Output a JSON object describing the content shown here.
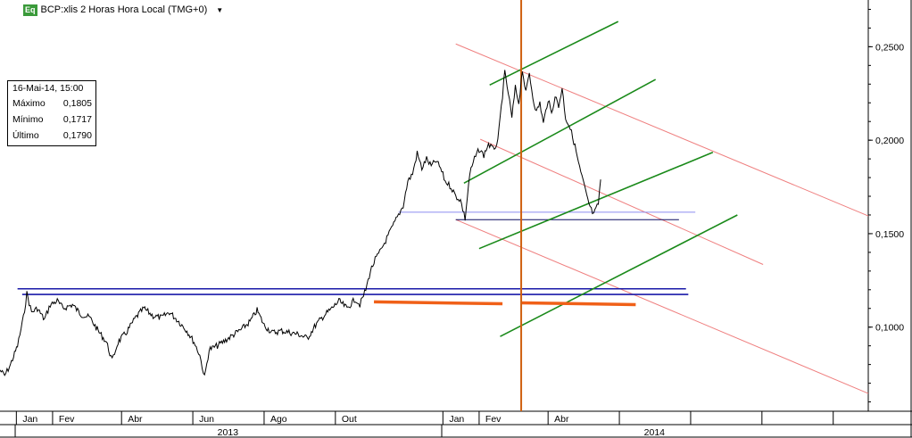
{
  "header": {
    "badge": "Eq",
    "title": "BCP:xlis 2 Horas Hora Local (TMG+0)",
    "menu_icon": "dropdown-caret-icon"
  },
  "info_box": {
    "datetime": "16-Mai-14, 15:00",
    "rows": [
      {
        "label": "Máximo",
        "value": "0,1805"
      },
      {
        "label": "Mínimo",
        "value": "0,1717"
      },
      {
        "label": "Último",
        "value": "0,1790"
      }
    ]
  },
  "chart_data": {
    "type": "line",
    "title": "",
    "xlabel": "",
    "ylabel": "",
    "ylim": [
      0.055,
      0.275
    ],
    "xlim": [
      "2012-12-18",
      "2014-12-31"
    ],
    "y_ticks": [
      {
        "label": "0,2500",
        "value": 0.25
      },
      {
        "label": "0,2000",
        "value": 0.2
      },
      {
        "label": "0,1500",
        "value": 0.15
      },
      {
        "label": "0,1000",
        "value": 0.1
      }
    ],
    "x_month_ticks": [
      {
        "label": "Jan",
        "date": "2013-01-01"
      },
      {
        "label": "Fev",
        "date": "2013-02-01"
      },
      {
        "label": "Abr",
        "date": "2013-04-01"
      },
      {
        "label": "Jun",
        "date": "2013-06-01"
      },
      {
        "label": "Ago",
        "date": "2013-08-01"
      },
      {
        "label": "Out",
        "date": "2013-10-01"
      },
      {
        "label": "Jan",
        "date": "2014-01-01"
      },
      {
        "label": "Fev",
        "date": "2014-02-01"
      },
      {
        "label": "Abr",
        "date": "2014-04-01"
      }
    ],
    "x_unlabeled_ticks": [
      "2014-06-01",
      "2014-08-01",
      "2014-10-01",
      "2014-12-01"
    ],
    "x_year_ticks": [
      {
        "label": "2013",
        "date": "2013-07-01"
      },
      {
        "label": "2014",
        "date": "2014-07-01"
      }
    ],
    "grid": false,
    "series": [
      {
        "color": "#000000",
        "points": [
          [
            "2012-12-18",
            0.077
          ],
          [
            "2012-12-22",
            0.074
          ],
          [
            "2012-12-27",
            0.08
          ],
          [
            "2013-01-02",
            0.09
          ],
          [
            "2013-01-07",
            0.105
          ],
          [
            "2013-01-10",
            0.118
          ],
          [
            "2013-01-14",
            0.108
          ],
          [
            "2013-01-19",
            0.11
          ],
          [
            "2013-01-25",
            0.104
          ],
          [
            "2013-01-30",
            0.112
          ],
          [
            "2013-02-05",
            0.114
          ],
          [
            "2013-02-10",
            0.11
          ],
          [
            "2013-02-18",
            0.112
          ],
          [
            "2013-02-25",
            0.107
          ],
          [
            "2013-03-05",
            0.105
          ],
          [
            "2013-03-12",
            0.098
          ],
          [
            "2013-03-19",
            0.092
          ],
          [
            "2013-03-24",
            0.082
          ],
          [
            "2013-03-29",
            0.092
          ],
          [
            "2013-04-05",
            0.097
          ],
          [
            "2013-04-13",
            0.105
          ],
          [
            "2013-04-20",
            0.11
          ],
          [
            "2013-04-28",
            0.106
          ],
          [
            "2013-05-05",
            0.105
          ],
          [
            "2013-05-12",
            0.108
          ],
          [
            "2013-05-20",
            0.103
          ],
          [
            "2013-05-27",
            0.098
          ],
          [
            "2013-06-02",
            0.092
          ],
          [
            "2013-06-07",
            0.085
          ],
          [
            "2013-06-11",
            0.073
          ],
          [
            "2013-06-15",
            0.088
          ],
          [
            "2013-06-22",
            0.09
          ],
          [
            "2013-06-29",
            0.093
          ],
          [
            "2013-07-06",
            0.096
          ],
          [
            "2013-07-13",
            0.099
          ],
          [
            "2013-07-20",
            0.103
          ],
          [
            "2013-07-26",
            0.109
          ],
          [
            "2013-08-01",
            0.101
          ],
          [
            "2013-08-08",
            0.097
          ],
          [
            "2013-08-16",
            0.098
          ],
          [
            "2013-08-24",
            0.097
          ],
          [
            "2013-08-31",
            0.096
          ],
          [
            "2013-09-07",
            0.094
          ],
          [
            "2013-09-14",
            0.101
          ],
          [
            "2013-09-21",
            0.106
          ],
          [
            "2013-09-28",
            0.11
          ],
          [
            "2013-10-04",
            0.114
          ],
          [
            "2013-10-11",
            0.11
          ],
          [
            "2013-10-18",
            0.115
          ],
          [
            "2013-10-22",
            0.112
          ],
          [
            "2013-10-27",
            0.12
          ],
          [
            "2013-10-31",
            0.13
          ],
          [
            "2013-11-04",
            0.136
          ],
          [
            "2013-11-08",
            0.14
          ],
          [
            "2013-11-12",
            0.145
          ],
          [
            "2013-11-16",
            0.15
          ],
          [
            "2013-11-20",
            0.155
          ],
          [
            "2013-11-24",
            0.16
          ],
          [
            "2013-11-28",
            0.165
          ],
          [
            "2013-12-02",
            0.178
          ],
          [
            "2013-12-06",
            0.182
          ],
          [
            "2013-12-10",
            0.193
          ],
          [
            "2013-12-14",
            0.185
          ],
          [
            "2013-12-18",
            0.19
          ],
          [
            "2013-12-22",
            0.186
          ],
          [
            "2013-12-26",
            0.189
          ],
          [
            "2013-12-30",
            0.185
          ],
          [
            "2014-01-03",
            0.178
          ],
          [
            "2014-01-08",
            0.175
          ],
          [
            "2014-01-12",
            0.17
          ],
          [
            "2014-01-16",
            0.168
          ],
          [
            "2014-01-20",
            0.158
          ],
          [
            "2014-01-24",
            0.182
          ],
          [
            "2014-01-28",
            0.19
          ],
          [
            "2014-02-01",
            0.195
          ],
          [
            "2014-02-05",
            0.192
          ],
          [
            "2014-02-09",
            0.198
          ],
          [
            "2014-02-13",
            0.195
          ],
          [
            "2014-02-17",
            0.199
          ],
          [
            "2014-02-20",
            0.218
          ],
          [
            "2014-02-23",
            0.236
          ],
          [
            "2014-02-26",
            0.225
          ],
          [
            "2014-03-01",
            0.212
          ],
          [
            "2014-03-04",
            0.228
          ],
          [
            "2014-03-07",
            0.22
          ],
          [
            "2014-03-10",
            0.238
          ],
          [
            "2014-03-13",
            0.225
          ],
          [
            "2014-03-16",
            0.236
          ],
          [
            "2014-03-19",
            0.223
          ],
          [
            "2014-03-22",
            0.215
          ],
          [
            "2014-03-25",
            0.22
          ],
          [
            "2014-03-28",
            0.209
          ],
          [
            "2014-04-01",
            0.222
          ],
          [
            "2014-04-04",
            0.214
          ],
          [
            "2014-04-07",
            0.224
          ],
          [
            "2014-04-10",
            0.218
          ],
          [
            "2014-04-13",
            0.228
          ],
          [
            "2014-04-16",
            0.212
          ],
          [
            "2014-04-19",
            0.208
          ],
          [
            "2014-04-22",
            0.202
          ],
          [
            "2014-04-25",
            0.194
          ],
          [
            "2014-04-28",
            0.185
          ],
          [
            "2014-05-01",
            0.178
          ],
          [
            "2014-05-04",
            0.17
          ],
          [
            "2014-05-07",
            0.164
          ],
          [
            "2014-05-10",
            0.16
          ],
          [
            "2014-05-14",
            0.166
          ],
          [
            "2014-05-16",
            0.179
          ]
        ]
      }
    ],
    "drawings": {
      "horizontal_lines": [
        {
          "color": "#1a1aa8",
          "y": 0.1205,
          "from": "2013-01-02",
          "to": "2014-07-28"
        },
        {
          "color": "#1a1aa8",
          "y": 0.1175,
          "from": "2013-01-06",
          "to": "2014-07-30"
        },
        {
          "color": "#8c8cf0",
          "y": 0.1615,
          "from": "2013-11-24",
          "to": "2014-08-05"
        },
        {
          "color": "#0a0a60",
          "y": 0.1575,
          "from": "2014-01-12",
          "to": "2014-07-22"
        }
      ],
      "orange_support_segments": [
        {
          "color": "#f06018",
          "from": [
            "2013-11-03",
            0.1135
          ],
          "to": [
            "2014-02-21",
            0.1125
          ]
        },
        {
          "color": "#f06018",
          "from": [
            "2014-03-09",
            0.113
          ],
          "to": [
            "2014-06-15",
            0.112
          ]
        }
      ],
      "vertical_marker": {
        "color": "#d06010",
        "date": "2014-03-09"
      },
      "green_channel": [
        {
          "color": "#1a8a1a",
          "from": [
            "2014-02-10",
            0.2295
          ],
          "to": [
            "2014-05-31",
            0.2635
          ]
        },
        {
          "color": "#1a8a1a",
          "from": [
            "2014-01-19",
            0.177
          ],
          "to": [
            "2014-07-02",
            0.2325
          ]
        },
        {
          "color": "#1a8a1a",
          "from": [
            "2014-02-01",
            0.142
          ],
          "to": [
            "2014-08-20",
            0.1935
          ]
        },
        {
          "color": "#1a8a1a",
          "from": [
            "2014-02-19",
            0.095
          ],
          "to": [
            "2014-09-10",
            0.16
          ]
        }
      ],
      "red_channel": [
        {
          "color": "#ef7f7f",
          "from": [
            "2014-01-12",
            0.2515
          ],
          "to": [
            "2014-12-31",
            0.1595
          ]
        },
        {
          "color": "#ef7f7f",
          "from": [
            "2014-02-02",
            0.2005
          ],
          "to": [
            "2014-10-02",
            0.1335
          ]
        },
        {
          "color": "#ef7f7f",
          "from": [
            "2014-01-12",
            0.1575
          ],
          "to": [
            "2014-12-31",
            0.0645
          ]
        }
      ]
    }
  }
}
